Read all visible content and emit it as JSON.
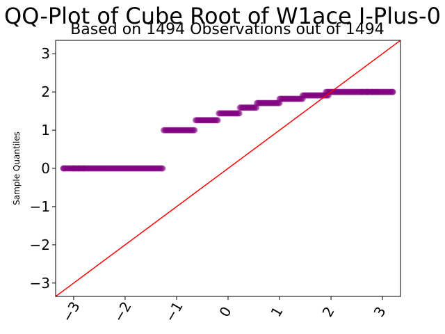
{
  "chart_data": {
    "type": "scatter",
    "title": "QQ-Plot of Cube Root of W1ace I-Plus-0",
    "subtitle": "Based on 1494 Observations out of 1494",
    "xlabel": "",
    "ylabel": "Sample Quantiles",
    "xlim": [
      -3.35,
      3.35
    ],
    "ylim": [
      -3.35,
      3.35
    ],
    "x_ticks": [
      -3,
      -2,
      -1,
      0,
      1,
      2,
      3
    ],
    "y_ticks": [
      -3,
      -2,
      -1,
      0,
      1,
      2,
      3
    ],
    "x_tick_labels": [
      "−3",
      "−2",
      "−1",
      "0",
      "1",
      "2",
      "3"
    ],
    "y_tick_labels": [
      "−3",
      "−2",
      "−1",
      "0",
      "1",
      "2",
      "3"
    ],
    "grid": false,
    "point_color": "#800080",
    "reference_line": {
      "color": "#ff0000",
      "slope": 1,
      "intercept": 0
    },
    "series": [
      {
        "values": [
          {
            "y": 0.0,
            "x_range": [
              -3.2,
              -1.27
            ],
            "x_single": [
              -3.2,
              -3.0,
              -2.9,
              -2.8
            ]
          },
          {
            "y": 1.0,
            "x_range": [
              -1.25,
              -0.65
            ]
          },
          {
            "y": 1.26,
            "x_range": [
              -0.63,
              -0.2
            ]
          },
          {
            "y": 1.44,
            "x_range": [
              -0.18,
              0.22
            ]
          },
          {
            "y": 1.59,
            "x_range": [
              0.23,
              0.55
            ]
          },
          {
            "y": 1.71,
            "x_range": [
              0.56,
              1.0
            ]
          },
          {
            "y": 1.82,
            "x_range": [
              1.0,
              1.45
            ]
          },
          {
            "y": 1.91,
            "x_range": [
              1.45,
              1.95
            ]
          },
          {
            "y": 2.0,
            "x_range": [
              1.9,
              3.2
            ],
            "x_single": [
              2.6,
              2.7,
              2.8,
              2.9,
              3.2
            ]
          }
        ]
      }
    ]
  }
}
